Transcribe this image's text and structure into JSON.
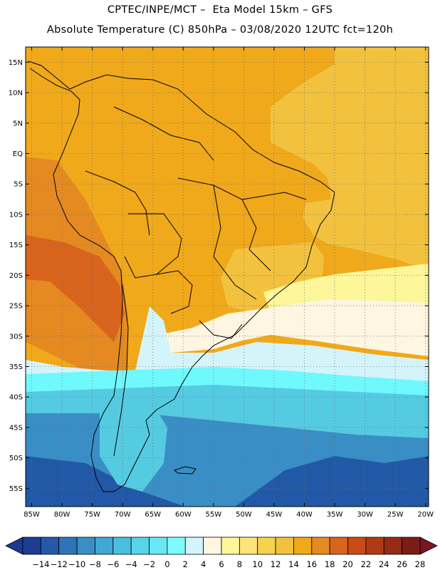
{
  "header": {
    "line1": "CPTEC/INPE/MCT –  Eta Model 15km – GFS",
    "line2": "Absolute Temperature (C) 850hPa – 03/08/2020 12UTC fct=120h"
  },
  "map": {
    "lon_range": [
      -86,
      -19.5
    ],
    "lat_range": [
      -58,
      17.5
    ],
    "x_ticks": [
      {
        "lon": -85,
        "label": "85W"
      },
      {
        "lon": -80,
        "label": "80W"
      },
      {
        "lon": -75,
        "label": "75W"
      },
      {
        "lon": -70,
        "label": "70W"
      },
      {
        "lon": -65,
        "label": "65W"
      },
      {
        "lon": -60,
        "label": "60W"
      },
      {
        "lon": -55,
        "label": "55W"
      },
      {
        "lon": -50,
        "label": "50W"
      },
      {
        "lon": -45,
        "label": "45W"
      },
      {
        "lon": -40,
        "label": "40W"
      },
      {
        "lon": -35,
        "label": "35W"
      },
      {
        "lon": -30,
        "label": "30W"
      },
      {
        "lon": -25,
        "label": "25W"
      },
      {
        "lon": -20,
        "label": "20W"
      }
    ],
    "y_ticks": [
      {
        "lat": 15,
        "label": "15N"
      },
      {
        "lat": 10,
        "label": "10N"
      },
      {
        "lat": 5,
        "label": "5N"
      },
      {
        "lat": 0,
        "label": "EQ"
      },
      {
        "lat": -5,
        "label": "5S"
      },
      {
        "lat": -10,
        "label": "10S"
      },
      {
        "lat": -15,
        "label": "15S"
      },
      {
        "lat": -20,
        "label": "20S"
      },
      {
        "lat": -25,
        "label": "25S"
      },
      {
        "lat": -30,
        "label": "30S"
      },
      {
        "lat": -35,
        "label": "35S"
      },
      {
        "lat": -40,
        "label": "40S"
      },
      {
        "lat": -45,
        "label": "45S"
      },
      {
        "lat": -50,
        "label": "50S"
      },
      {
        "lat": -55,
        "label": "55S"
      }
    ],
    "field_bands": [
      {
        "temp": 16,
        "color": "#f0a91a",
        "region": "tropics and most of the continent"
      },
      {
        "temp": 14,
        "color": "#f2c23f",
        "region": "tropical Atlantic and southeast Brazil"
      },
      {
        "temp": 20,
        "color": "#e58a21",
        "region": "coastal Peru and Bolivia"
      },
      {
        "temp": 22,
        "color": "#d9641d",
        "region": "Atacama / northern Chile"
      },
      {
        "temp": 10,
        "color": "#fdf69a",
        "region": "subtropical Atlantic"
      },
      {
        "temp": 6,
        "color": "#fff6e2",
        "region": "near 30S"
      },
      {
        "temp": 4,
        "color": "#d4f4fb",
        "region": "near 35S"
      },
      {
        "temp": 2,
        "color": "#6ff9fd",
        "region": "near 37S"
      },
      {
        "temp": 0,
        "color": "#5be3ef",
        "region": "near 40S"
      },
      {
        "temp": -2,
        "color": "#55cbe2",
        "region": "Patagonia"
      },
      {
        "temp": -6,
        "color": "#2d8fc6",
        "region": "southern Pacific and South Atlantic"
      },
      {
        "temp": -10,
        "color": "#2259a7",
        "region": "far south"
      }
    ]
  },
  "colorbar": {
    "labels": [
      "-14",
      "-12",
      "-10",
      "-8",
      "-6",
      "-4",
      "-2",
      "0",
      "2",
      "4",
      "6",
      "8",
      "10",
      "12",
      "14",
      "16",
      "18",
      "20",
      "22",
      "24",
      "26",
      "28"
    ],
    "colors": [
      "#1d3c94",
      "#2559a7",
      "#2f74b8",
      "#3a8ec6",
      "#41a7d3",
      "#4bbede",
      "#55d4ea",
      "#68e7f4",
      "#7cfcfe",
      "#d4f4fb",
      "#fff6e2",
      "#fdf69a",
      "#fce37a",
      "#f7d24e",
      "#f2c23f",
      "#f0a91a",
      "#e58a21",
      "#d9641d",
      "#c94b15",
      "#b03a15",
      "#962a15",
      "#7a1d17"
    ],
    "under_color": "#1a3a8e",
    "over_color": "#7a1623"
  }
}
